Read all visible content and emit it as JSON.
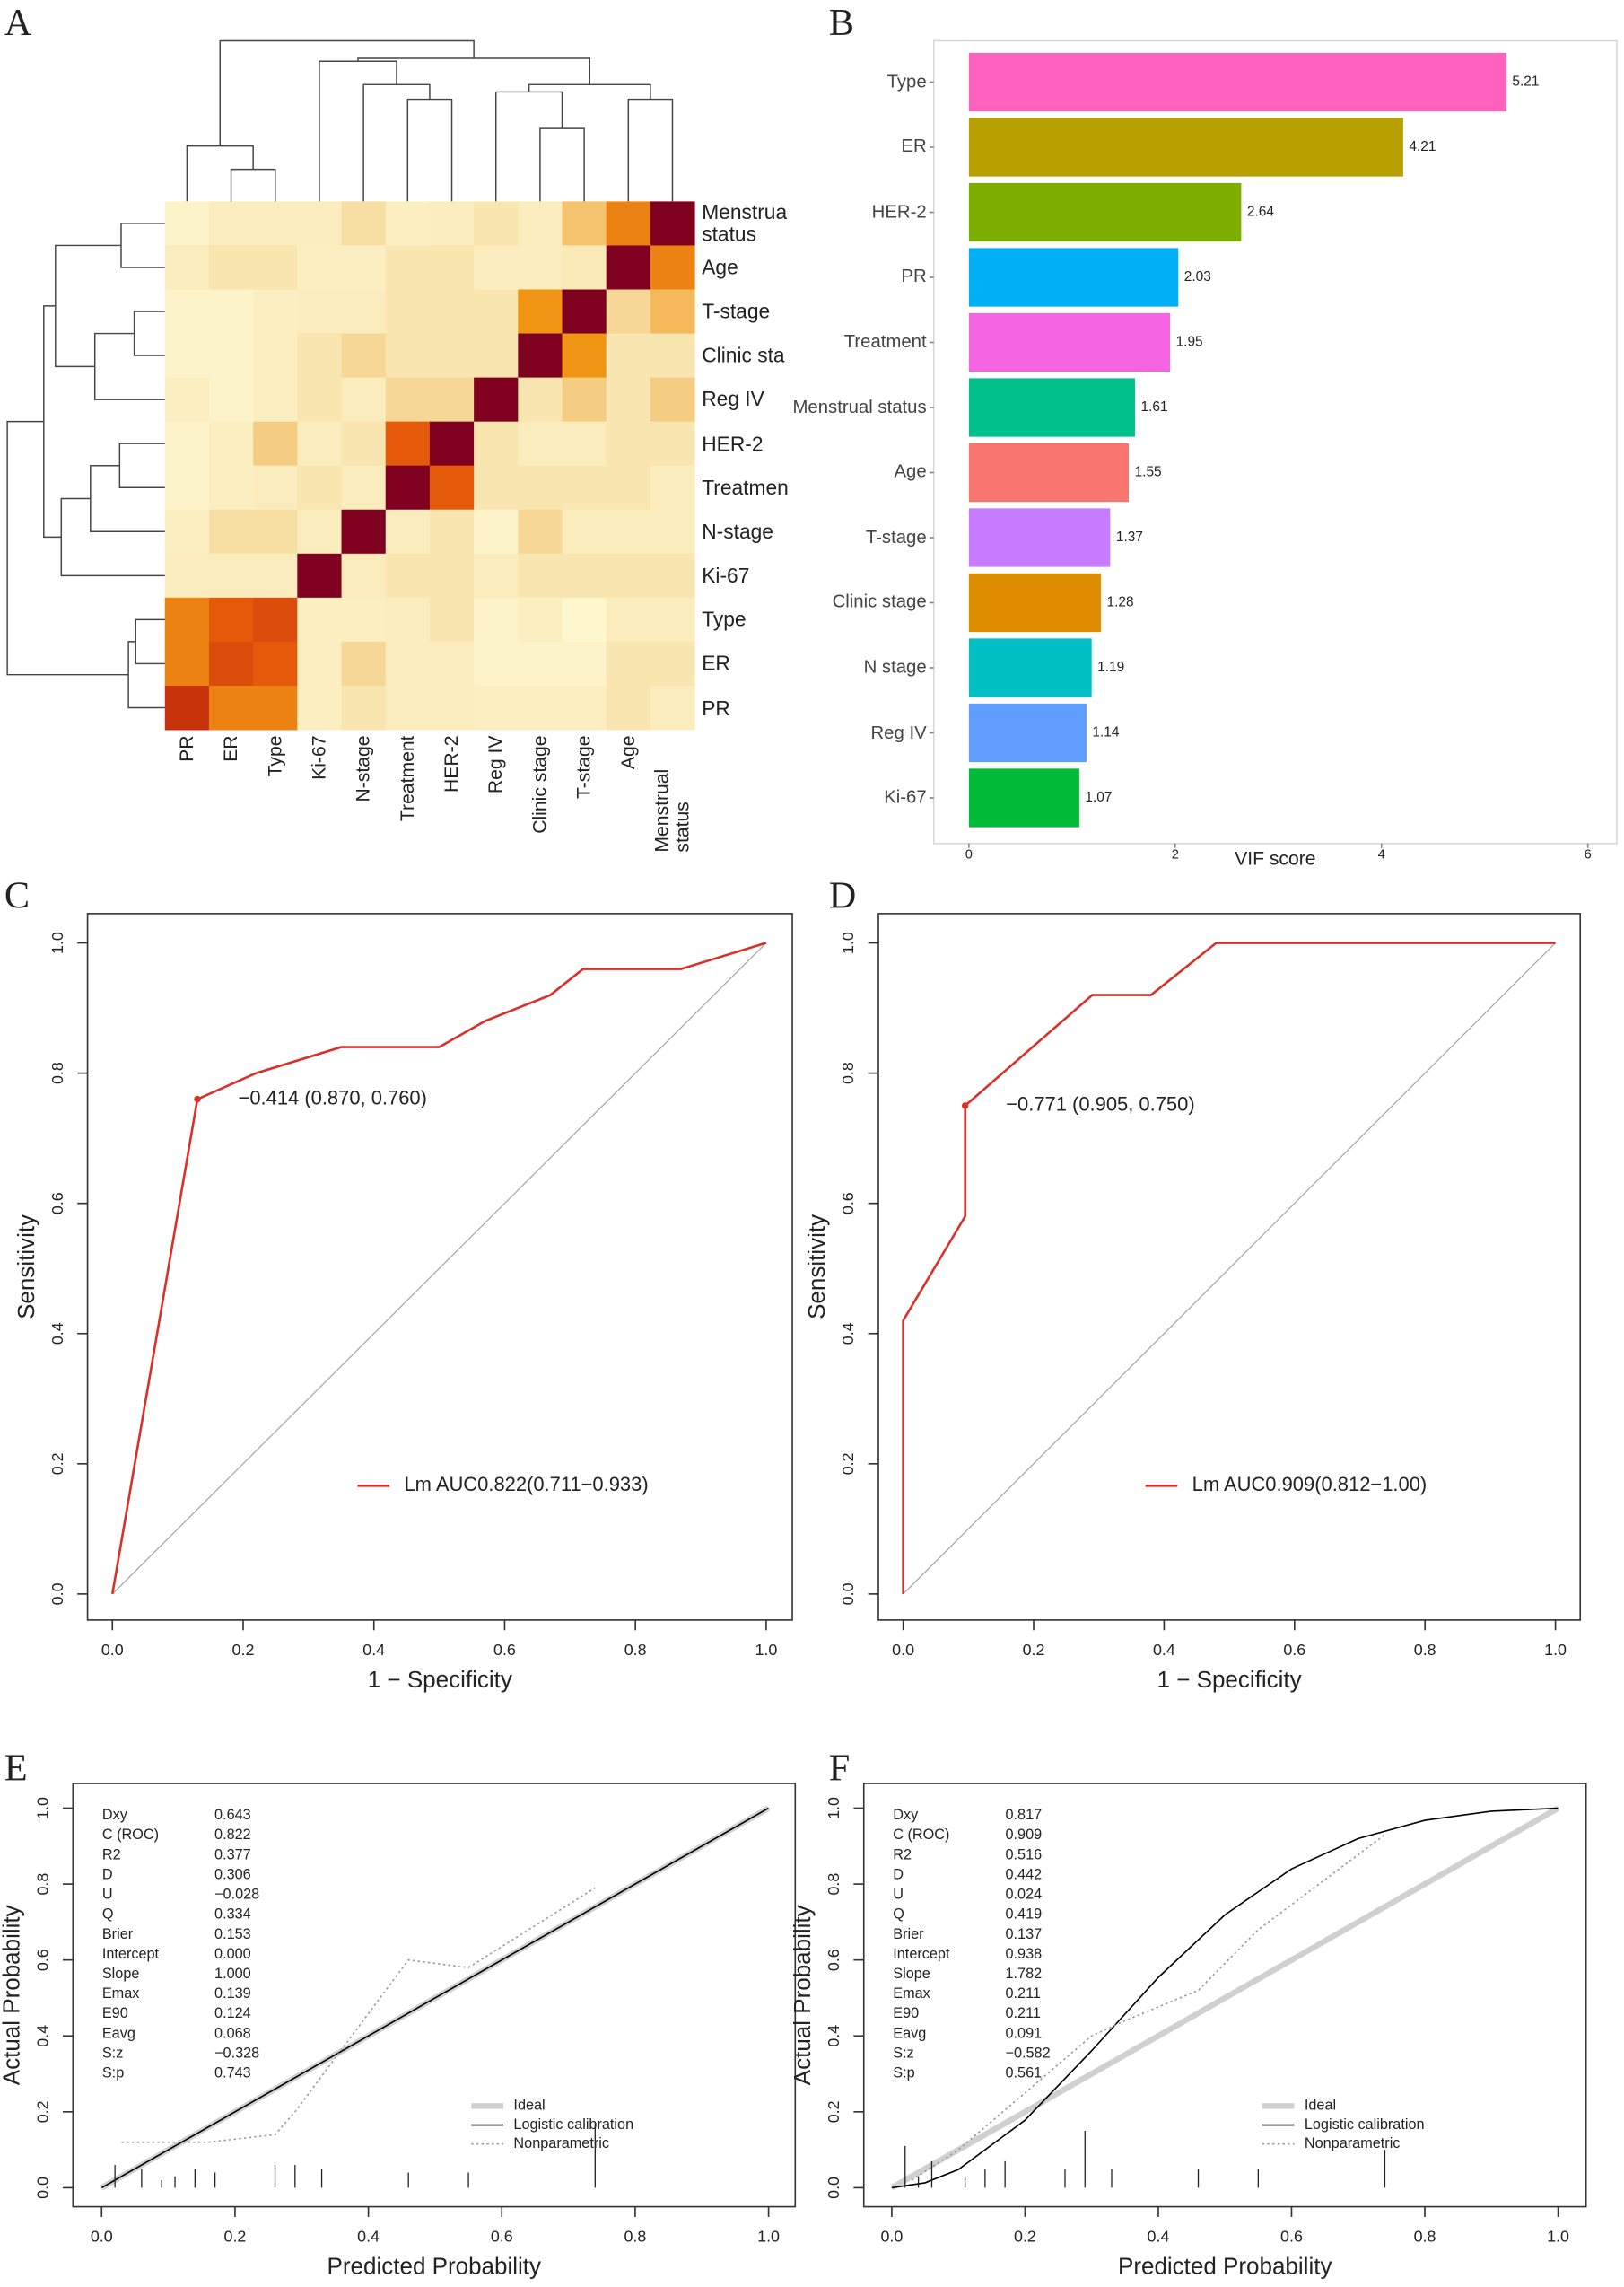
{
  "chart_data": [
    {
      "type": "heatmap",
      "panel_label": "A",
      "rows": [
        "Menstrua status",
        "Age",
        "T-stage",
        "Clinic sta",
        "Reg IV",
        "HER-2",
        "Treatmen",
        "N-stage",
        "Ki-67",
        "Type",
        "ER",
        "PR"
      ],
      "columns": [
        "PR",
        "ER",
        "Type",
        "Ki-67",
        "N-stage",
        "Treatment",
        "HER-2",
        "Reg IV",
        "Clinic stage",
        "T-stage",
        "Age",
        "Menstrual status"
      ],
      "values": [
        [
          0.05,
          0.1,
          0.1,
          0.1,
          0.2,
          0.08,
          0.1,
          0.15,
          0.1,
          0.35,
          0.6,
          1
        ],
        [
          0.1,
          0.15,
          0.15,
          0.08,
          0.08,
          0.15,
          0.15,
          0.1,
          0.1,
          0.12,
          1,
          0.6
        ],
        [
          0.05,
          0.05,
          0.08,
          0.1,
          0.1,
          0.15,
          0.15,
          0.15,
          0.55,
          1,
          0.25,
          0.4
        ],
        [
          0.05,
          0.05,
          0.08,
          0.15,
          0.25,
          0.15,
          0.15,
          0.15,
          1,
          0.55,
          0.15,
          0.15
        ],
        [
          0.08,
          0.05,
          0.08,
          0.15,
          0.1,
          0.25,
          0.25,
          1,
          0.15,
          0.3,
          0.15,
          0.3
        ],
        [
          0.05,
          0.08,
          0.3,
          0.1,
          0.15,
          0.7,
          1,
          0.15,
          0.1,
          0.1,
          0.15,
          0.15
        ],
        [
          0.05,
          0.08,
          0.1,
          0.15,
          0.1,
          1,
          0.7,
          0.15,
          0.15,
          0.15,
          0.15,
          0.1
        ],
        [
          0.08,
          0.2,
          0.2,
          0.1,
          1,
          0.1,
          0.15,
          0.05,
          0.25,
          0.1,
          0.1,
          0.1
        ],
        [
          0.1,
          0.1,
          0.1,
          1,
          0.1,
          0.15,
          0.15,
          0.1,
          0.15,
          0.15,
          0.15,
          0.15
        ],
        [
          0.6,
          0.7,
          0.75,
          0.08,
          0.08,
          0.1,
          0.15,
          0.05,
          0.08,
          0.03,
          0.1,
          0.1
        ],
        [
          0.6,
          0.75,
          0.7,
          0.08,
          0.25,
          0.1,
          0.1,
          0.05,
          0.05,
          0.05,
          0.15,
          0.15
        ],
        [
          0.85,
          0.6,
          0.6,
          0.08,
          0.15,
          0.1,
          0.1,
          0.08,
          0.08,
          0.08,
          0.15,
          0.1
        ]
      ]
    },
    {
      "type": "bar",
      "panel_label": "B",
      "orientation": "horizontal",
      "categories": [
        "Type",
        "ER",
        "HER-2",
        "PR",
        "Treatment",
        "Menstrual status",
        "Age",
        "T-stage",
        "Clinic stage",
        "N stage",
        "Reg IV",
        "Ki-67"
      ],
      "values": [
        5.21,
        4.21,
        2.64,
        2.03,
        1.95,
        1.61,
        1.55,
        1.37,
        1.28,
        1.19,
        1.14,
        1.07
      ],
      "colors": [
        "#ff62bc",
        "#b79f00",
        "#7cae00",
        "#00b0f6",
        "#f564e3",
        "#00c08b",
        "#f8766d",
        "#c77cff",
        "#de8c00",
        "#00bfc4",
        "#619cff",
        "#00ba38"
      ],
      "xlabel": "VIF score",
      "xlim": [
        -0.34,
        6.28
      ],
      "xticks": [
        0,
        2,
        4,
        6
      ]
    },
    {
      "type": "line",
      "panel_label": "C",
      "xlabel": "1 − Specificity",
      "ylabel": "Sensitivity",
      "xlim": [
        -0.038,
        1.04
      ],
      "ylim": [
        -0.04,
        1.045
      ],
      "xticks": [
        {
          "value": 0,
          "label": "0.0"
        },
        0.2,
        0.4,
        0.6,
        0.8,
        {
          "value": 1,
          "label": "1.0"
        }
      ],
      "yticks": [
        {
          "value": 0,
          "label": "0.0"
        },
        0.2,
        0.4,
        0.6,
        0.8,
        {
          "value": 1,
          "label": "1.0"
        }
      ],
      "legend": "lower right",
      "reference_diagonal": true,
      "series": [
        {
          "name": "Lm AUC0.822(0.711−0.933)",
          "color": "#d9302a",
          "line_style": "solid",
          "x": [
            0,
            0.13,
            0.22,
            0.35,
            0.5,
            0.57,
            0.67,
            0.72,
            0.87,
            1
          ],
          "values": [
            0,
            0.76,
            0.8,
            0.84,
            0.84,
            0.88,
            0.92,
            0.96,
            0.96,
            1
          ]
        }
      ],
      "annotation": {
        "text": "−0.414 (0.870, 0.760)",
        "x": 0.13,
        "y": 0.76,
        "color": "#d9302a"
      }
    },
    {
      "type": "line",
      "panel_label": "D",
      "xlabel": "1 − Specificity",
      "ylabel": "Sensitivity",
      "xlim": [
        -0.038,
        1.038
      ],
      "ylim": [
        -0.04,
        1.045
      ],
      "xticks": [
        {
          "value": 0,
          "label": "0.0"
        },
        0.2,
        0.4,
        0.6,
        0.8,
        {
          "value": 1,
          "label": "1.0"
        }
      ],
      "yticks": [
        {
          "value": 0,
          "label": "0.0"
        },
        0.2,
        0.4,
        0.6,
        0.8,
        {
          "value": 1,
          "label": "1.0"
        }
      ],
      "legend": "lower right",
      "reference_diagonal": true,
      "series": [
        {
          "name": "Lm AUC0.909(0.812−1.00)",
          "color": "#d9302a",
          "line_style": "solid",
          "x": [
            0,
            0,
            0.095,
            0.095,
            0.29,
            0.38,
            0.48,
            1
          ],
          "values": [
            0,
            0.42,
            0.58,
            0.75,
            0.92,
            0.92,
            1,
            1
          ]
        }
      ],
      "annotation": {
        "text": "−0.771 (0.905, 0.750)",
        "x": 0.095,
        "y": 0.75,
        "color": "#d9302a"
      }
    },
    {
      "type": "line",
      "panel_label": "E",
      "xlabel": "Predicted Probability",
      "ylabel": "Actual Probability",
      "xlim": [
        -0.043,
        1.04
      ],
      "ylim": [
        -0.05,
        1.065
      ],
      "xticks": [
        {
          "value": 0,
          "label": "0.0"
        },
        0.2,
        0.4,
        0.6,
        0.8,
        {
          "value": 1,
          "label": "1.0"
        }
      ],
      "yticks": [
        {
          "value": 0,
          "label": "0.0"
        },
        0.2,
        0.4,
        0.6,
        0.8,
        {
          "value": 1,
          "label": "1.0"
        }
      ],
      "legend": "lower right",
      "series": [
        {
          "name": "Ideal",
          "color": "#d0d0d0",
          "line_style": "thick",
          "x": [
            0,
            1
          ],
          "values": [
            0,
            1
          ]
        },
        {
          "name": "Logistic calibration",
          "color": "#000000",
          "line_style": "solid",
          "x": [
            0,
            0.5,
            1
          ],
          "values": [
            0,
            0.5,
            1
          ]
        },
        {
          "name": "Nonparametric",
          "color": "#9a9a9a",
          "line_style": "dotted",
          "x": [
            0.03,
            0.16,
            0.26,
            0.29,
            0.46,
            0.55,
            0.74
          ],
          "values": [
            0.12,
            0.12,
            0.14,
            0.2,
            0.6,
            0.58,
            0.79
          ]
        }
      ],
      "rug": {
        "x": [
          0.02,
          0.06,
          0.09,
          0.11,
          0.14,
          0.17,
          0.26,
          0.29,
          0.33,
          0.46,
          0.55,
          0.74
        ],
        "values": [
          0.06,
          0.05,
          0.02,
          0.03,
          0.05,
          0.04,
          0.06,
          0.06,
          0.05,
          0.04,
          0.04,
          0.17
        ]
      },
      "stats": {
        "names": [
          "Dxy",
          "C (ROC)",
          "R2",
          "D",
          "U",
          "Q",
          "Brier",
          "Intercept",
          "Slope",
          "Emax",
          "E90",
          "Eavg",
          "S:z",
          "S:p"
        ],
        "values": [
          "0.643",
          "0.822",
          "0.377",
          "0.306",
          "−0.028",
          "0.334",
          "0.153",
          "0.000",
          "1.000",
          "0.139",
          "0.124",
          "0.068",
          "−0.328",
          "0.743"
        ]
      }
    },
    {
      "type": "line",
      "panel_label": "F",
      "xlabel": "Predicted Probability",
      "ylabel": "Actual Probability",
      "xlim": [
        -0.042,
        1.042
      ],
      "ylim": [
        -0.05,
        1.065
      ],
      "xticks": [
        {
          "value": 0,
          "label": "0.0"
        },
        0.2,
        0.4,
        0.6,
        0.8,
        {
          "value": 1,
          "label": "1.0"
        }
      ],
      "yticks": [
        {
          "value": 0,
          "label": "0.0"
        },
        0.2,
        0.4,
        0.6,
        0.8,
        {
          "value": 1,
          "label": "1.0"
        }
      ],
      "legend": "lower right",
      "series": [
        {
          "name": "Ideal",
          "color": "#d0d0d0",
          "line_style": "thick",
          "x": [
            0,
            1
          ],
          "values": [
            0,
            1
          ]
        },
        {
          "name": "Logistic calibration",
          "color": "#000000",
          "line_style": "solid",
          "x": [
            0,
            0.05,
            0.1,
            0.2,
            0.3,
            0.4,
            0.5,
            0.6,
            0.7,
            0.8,
            0.9,
            1
          ],
          "values": [
            0,
            0.013,
            0.048,
            0.178,
            0.361,
            0.554,
            0.719,
            0.84,
            0.92,
            0.968,
            0.992,
            1
          ]
        },
        {
          "name": "Nonparametric",
          "color": "#9a9a9a",
          "line_style": "dotted",
          "x": [
            0.03,
            0.1,
            0.2,
            0.3,
            0.35,
            0.46,
            0.55,
            0.74
          ],
          "values": [
            0.02,
            0.1,
            0.25,
            0.4,
            0.44,
            0.52,
            0.68,
            0.93
          ]
        }
      ],
      "rug": {
        "x": [
          0.02,
          0.04,
          0.06,
          0.11,
          0.14,
          0.17,
          0.26,
          0.29,
          0.33,
          0.46,
          0.55,
          0.74
        ],
        "values": [
          0.11,
          0.03,
          0.07,
          0.03,
          0.05,
          0.07,
          0.05,
          0.15,
          0.05,
          0.05,
          0.05,
          0.1
        ]
      },
      "stats": {
        "names": [
          "Dxy",
          "C (ROC)",
          "R2",
          "D",
          "U",
          "Q",
          "Brier",
          "Intercept",
          "Slope",
          "Emax",
          "E90",
          "Eavg",
          "S:z",
          "S:p"
        ],
        "values": [
          "0.817",
          "0.909",
          "0.516",
          "0.442",
          "0.024",
          "0.419",
          "0.137",
          "0.938",
          "1.782",
          "0.211",
          "0.211",
          "0.091",
          "−0.582",
          "0.561"
        ]
      }
    }
  ]
}
